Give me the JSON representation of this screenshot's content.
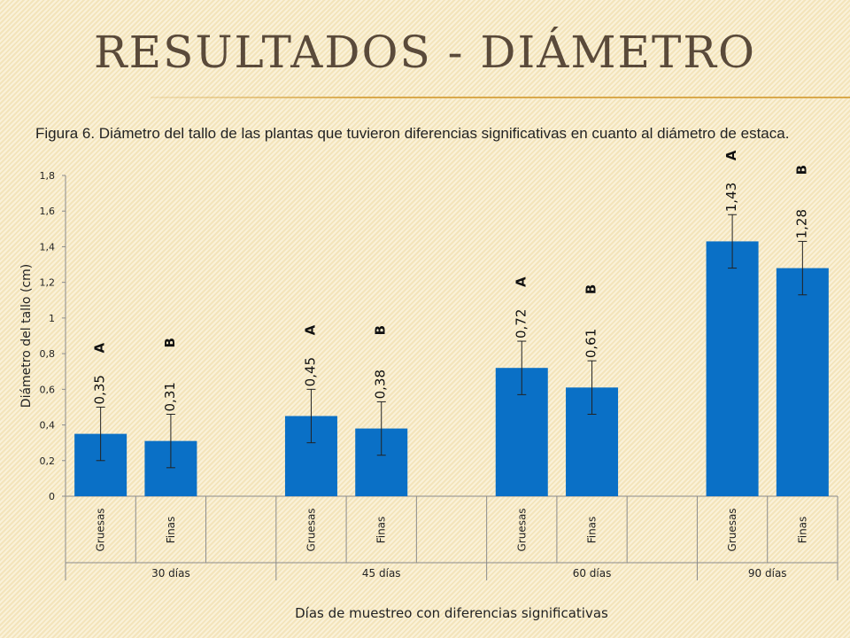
{
  "slide": {
    "title": "RESULTADOS  -  DIÁMETRO",
    "caption": "Figura 6. Diámetro del tallo de las plantas que tuvieron diferencias significativas en cuanto al diámetro de estaca."
  },
  "colors": {
    "bar": "#0a70c6",
    "title": "#5a4a3a",
    "rule": "#d9a94b"
  },
  "chart_data": {
    "type": "bar",
    "xlabel": "Días de muestreo con diferencias significativas",
    "ylabel": "Diámetro del tallo (cm)",
    "ylim": [
      0,
      1.8
    ],
    "yticks": [
      "0",
      "0,2",
      "0,4",
      "0,6",
      "0,8",
      "1",
      "1,2",
      "1,4",
      "1,6",
      "1,8"
    ],
    "grid": false,
    "groups": [
      {
        "label": "30 días",
        "bars": [
          {
            "category": "Gruesas",
            "value": 0.35,
            "error": 0.15,
            "value_label": "0,35",
            "letter": "A"
          },
          {
            "category": "Finas",
            "value": 0.31,
            "error": 0.15,
            "value_label": "0,31",
            "letter": "B"
          }
        ]
      },
      {
        "label": "45 días",
        "bars": [
          {
            "category": "Gruesas",
            "value": 0.45,
            "error": 0.15,
            "value_label": "0,45",
            "letter": "A"
          },
          {
            "category": "Finas",
            "value": 0.38,
            "error": 0.15,
            "value_label": "0,38",
            "letter": "B"
          }
        ]
      },
      {
        "label": "60 días",
        "bars": [
          {
            "category": "Gruesas",
            "value": 0.72,
            "error": 0.15,
            "value_label": "0,72",
            "letter": "A"
          },
          {
            "category": "Finas",
            "value": 0.61,
            "error": 0.15,
            "value_label": "0,61",
            "letter": "B"
          }
        ]
      },
      {
        "label": "90 días",
        "bars": [
          {
            "category": "Gruesas",
            "value": 1.43,
            "error": 0.15,
            "value_label": "1,43",
            "letter": "A"
          },
          {
            "category": "Finas",
            "value": 1.28,
            "error": 0.15,
            "value_label": "1,28",
            "letter": "B"
          }
        ]
      }
    ]
  }
}
